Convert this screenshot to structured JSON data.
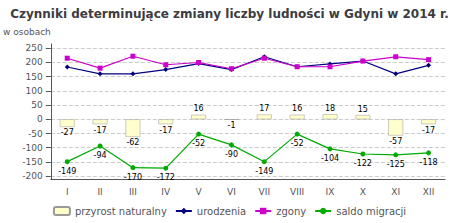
{
  "chart_data": {
    "type": "bar",
    "title": "Czynniki determinujące zmiany liczby ludności w Gdyni w 2014 r.",
    "ylabel": "w osobach",
    "categories": [
      "I",
      "II",
      "III",
      "IV",
      "V",
      "VI",
      "VII",
      "VIII",
      "IX",
      "X",
      "XI",
      "XII"
    ],
    "series": [
      {
        "name": "przyrost naturalny",
        "type": "bar",
        "color": "#ffffcc",
        "data_labels": true,
        "values": [
          -27,
          -17,
          -62,
          -17,
          16,
          -1,
          17,
          16,
          18,
          15,
          -57,
          -17
        ]
      },
      {
        "name": "urodzenia",
        "type": "line",
        "color": "#000080",
        "marker": "diamond",
        "line_style": "solid",
        "values": [
          184,
          160,
          160,
          175,
          196,
          175,
          220,
          185,
          195,
          205,
          160,
          190
        ]
      },
      {
        "name": "zgony",
        "type": "line",
        "color": "#cc00cc",
        "marker": "square",
        "line_style": "solid",
        "values": [
          215,
          180,
          222,
          192,
          200,
          178,
          215,
          185,
          185,
          205,
          220,
          210
        ]
      },
      {
        "name": "saldo migracji",
        "type": "line",
        "color": "#00aa00",
        "marker": "circle",
        "line_style": "solid",
        "data_labels": true,
        "values": [
          -149,
          -94,
          -170,
          -172,
          -52,
          -90,
          -149,
          -52,
          -104,
          -122,
          -125,
          -118
        ]
      }
    ],
    "ylim": [
      -210,
      265
    ],
    "yticks": [
      -200,
      -150,
      -100,
      -50,
      0,
      50,
      100,
      150,
      200,
      250
    ],
    "grid": true,
    "legend": "bottom"
  }
}
